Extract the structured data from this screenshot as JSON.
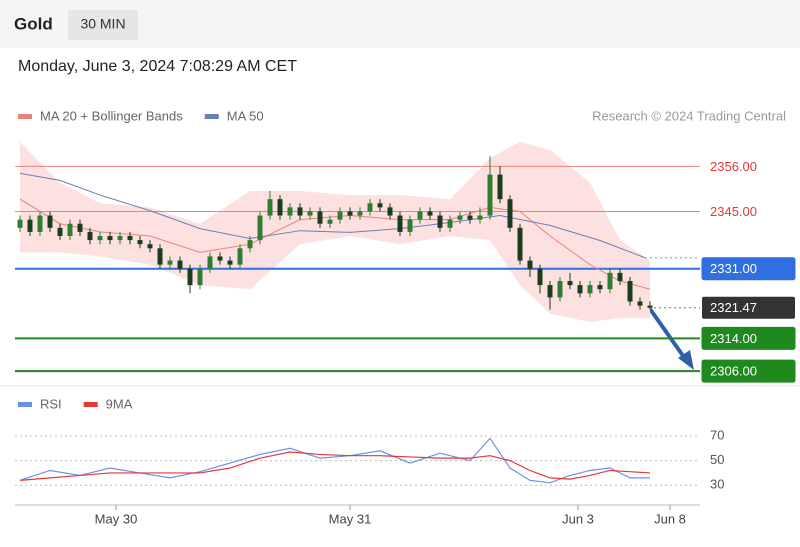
{
  "header": {
    "symbol": "Gold",
    "interval": "30 MIN",
    "timestamp": "Monday, June 3, 2024 7:08:29 AM CET",
    "credit": "Research © 2024 Trading Central"
  },
  "chart_data": [
    {
      "type": "candlestick",
      "up_color": "#2e7d32",
      "down_color": "#1b3d1e",
      "xlim": [
        -0.5,
        68
      ],
      "ylim": [
        2302.6,
        2364.9
      ],
      "open": [
        2341,
        2343,
        2340,
        2344,
        2341,
        2339,
        2342,
        2340,
        2338,
        2339,
        2338,
        2339,
        2338,
        2337,
        2336,
        2332,
        2333,
        2331,
        2327,
        2331,
        2334,
        2333,
        2332,
        2336,
        2338,
        2344,
        2348,
        2344,
        2346,
        2344,
        2345,
        2342,
        2343,
        2345,
        2344,
        2345,
        2347,
        2346,
        2344,
        2340,
        2343,
        2345,
        2344,
        2341,
        2343,
        2344,
        2343,
        2344,
        2354,
        2348,
        2341,
        2333,
        2331,
        2327,
        2324,
        2328,
        2327,
        2325,
        2327,
        2326,
        2330,
        2328,
        2323,
        2322
      ],
      "high": [
        2344,
        2344,
        2345,
        2345,
        2342,
        2343,
        2343,
        2341,
        2340,
        2340,
        2340,
        2340,
        2339,
        2338,
        2337,
        2334,
        2334,
        2332,
        2332,
        2335,
        2335,
        2334,
        2337,
        2339,
        2345,
        2350,
        2349,
        2347,
        2347,
        2346,
        2346,
        2344,
        2346,
        2346,
        2346,
        2348,
        2348,
        2347,
        2345,
        2344,
        2346,
        2346,
        2345,
        2344,
        2345,
        2345,
        2346,
        2358.5,
        2356,
        2349,
        2342,
        2334,
        2332,
        2328,
        2329,
        2330,
        2328,
        2328,
        2328,
        2331,
        2331,
        2329,
        2324,
        2323
      ],
      "low": [
        2340,
        2339,
        2339,
        2340,
        2338,
        2338,
        2339,
        2337,
        2337,
        2337,
        2337,
        2337,
        2336,
        2335,
        2331,
        2331,
        2330,
        2325,
        2326,
        2330,
        2332,
        2331,
        2331,
        2335,
        2337,
        2343,
        2343,
        2343,
        2343,
        2343,
        2341,
        2341,
        2342,
        2343,
        2343,
        2344,
        2345,
        2343,
        2339,
        2339,
        2342,
        2343,
        2340,
        2340,
        2342,
        2342,
        2342,
        2343,
        2347,
        2340,
        2332,
        2329,
        2325,
        2321,
        2323,
        2326,
        2324,
        2324,
        2325,
        2325,
        2327,
        2322,
        2321,
        2321
      ],
      "close": [
        2343,
        2340,
        2344,
        2341,
        2339,
        2342,
        2340,
        2338,
        2339,
        2338,
        2339,
        2338,
        2337,
        2336,
        2332,
        2333,
        2331,
        2327,
        2331,
        2334,
        2333,
        2332,
        2336,
        2338,
        2344,
        2348,
        2344,
        2346,
        2344,
        2345,
        2342,
        2343,
        2345,
        2344,
        2345,
        2347,
        2346,
        2344,
        2340,
        2343,
        2345,
        2344,
        2341,
        2343,
        2344,
        2343,
        2344,
        2354,
        2348,
        2341,
        2333,
        2331,
        2327,
        2324,
        2328,
        2327,
        2325,
        2327,
        2326,
        2330,
        2328,
        2323,
        2322,
        2321.47
      ],
      "series": [
        {
          "name": "MA 20 + Bollinger Bands",
          "color": "#f08080",
          "band_color": "#fde0e0",
          "x": [
            0,
            4,
            8,
            13,
            18,
            23,
            28,
            33,
            38,
            43,
            47,
            50,
            53,
            57,
            60,
            63
          ],
          "values": [
            2348,
            2342,
            2340,
            2339,
            2335,
            2337,
            2343,
            2344,
            2343,
            2343,
            2346,
            2345,
            2339,
            2332,
            2328,
            2326
          ],
          "upper": [
            2362,
            2352,
            2347,
            2346,
            2342,
            2350,
            2350,
            2349,
            2349,
            2348,
            2358,
            2362,
            2360,
            2352,
            2338,
            2333
          ],
          "lower": [
            2335,
            2335,
            2334,
            2332,
            2327,
            2326,
            2337,
            2339,
            2337,
            2339,
            2338,
            2327,
            2320,
            2318,
            2319,
            2319
          ]
        },
        {
          "name": "MA 50",
          "color": "#6a7fb5",
          "x": [
            0,
            4,
            8,
            13,
            18,
            23,
            28,
            33,
            38,
            43,
            48,
            53,
            58,
            62.5
          ],
          "values": [
            2354.3,
            2352.6,
            2349,
            2345.2,
            2340.8,
            2338.4,
            2340.3,
            2339.9,
            2340.8,
            2342.3,
            2344,
            2341.6,
            2337.9,
            2333.7
          ]
        }
      ],
      "levels": [
        {
          "value": 2356,
          "label": "2356.00",
          "color": "#f08080",
          "text_color": "#e53935",
          "box": "#ffffff"
        },
        {
          "value": 2345,
          "label": "2345.00",
          "color": "#f08080",
          "text_color": "#e53935",
          "box": "#ffffff"
        },
        {
          "value": 2331,
          "label": "2331.00",
          "color": "#2f6fe0",
          "text_color": "#ffffff",
          "box": "#2f6fe0"
        },
        {
          "value": 2314,
          "label": "2314.00",
          "color": "#1e8a1e",
          "text_color": "#ffffff",
          "box": "#1e8a1e"
        },
        {
          "value": 2306,
          "label": "2306.00",
          "color": "#1e8a1e",
          "text_color": "#ffffff",
          "box": "#1e8a1e"
        }
      ],
      "last": 2321.47,
      "last_color": "#333333"
    },
    {
      "type": "line",
      "xlim": [
        -0.5,
        68
      ],
      "ylim": [
        14,
        87
      ],
      "yticks": [
        30,
        50,
        70
      ],
      "xticks": [
        {
          "value": 9.6,
          "label": "May 30"
        },
        {
          "value": 33,
          "label": "May 31"
        },
        {
          "value": 55.8,
          "label": "Jun 3"
        },
        {
          "value": 65,
          "label": "Jun 8"
        }
      ],
      "series": [
        {
          "name": "RSI",
          "color": "#6a8ff0",
          "x": [
            0,
            3,
            6,
            9,
            12,
            15,
            18,
            21,
            24,
            27,
            30,
            33,
            36,
            39,
            42,
            45,
            47,
            49,
            51,
            53,
            55,
            57,
            59,
            61,
            63
          ],
          "values": [
            34,
            42,
            38,
            44,
            40,
            36,
            41,
            48,
            55,
            60,
            52,
            54,
            58,
            48,
            56,
            50,
            68,
            44,
            34,
            32,
            38,
            42,
            44,
            36,
            36
          ]
        },
        {
          "name": "9MA",
          "color": "#e53935",
          "x": [
            0,
            3,
            6,
            9,
            12,
            15,
            18,
            21,
            24,
            27,
            30,
            33,
            36,
            39,
            42,
            45,
            47,
            49,
            51,
            53,
            55,
            57,
            59,
            61,
            63
          ],
          "values": [
            34,
            36,
            38,
            40,
            40,
            40,
            40,
            44,
            52,
            57,
            55,
            54,
            54,
            53,
            52,
            52,
            54,
            50,
            42,
            36,
            35,
            38,
            42,
            41,
            40
          ]
        }
      ]
    }
  ]
}
